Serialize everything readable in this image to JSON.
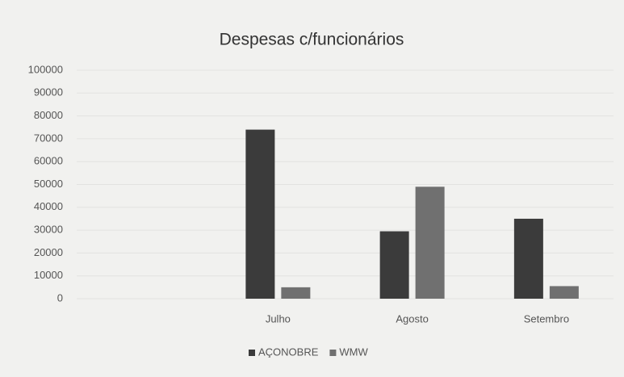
{
  "chart_data": {
    "type": "bar",
    "title": "Despesas c/funcionários",
    "categories": [
      null,
      "Julho",
      "Agosto",
      "Setembro"
    ],
    "series": [
      {
        "name": "AÇONOBRE",
        "color": "#3b3b3b",
        "values": [
          null,
          74000,
          29500,
          35000
        ]
      },
      {
        "name": "WMW",
        "color": "#707070",
        "values": [
          null,
          5000,
          49000,
          5500
        ]
      }
    ],
    "ylim": [
      0,
      100000
    ],
    "yticks": [
      0,
      10000,
      20000,
      30000,
      40000,
      50000,
      60000,
      70000,
      80000,
      90000,
      100000
    ],
    "grid": true,
    "legend": "bottom"
  }
}
